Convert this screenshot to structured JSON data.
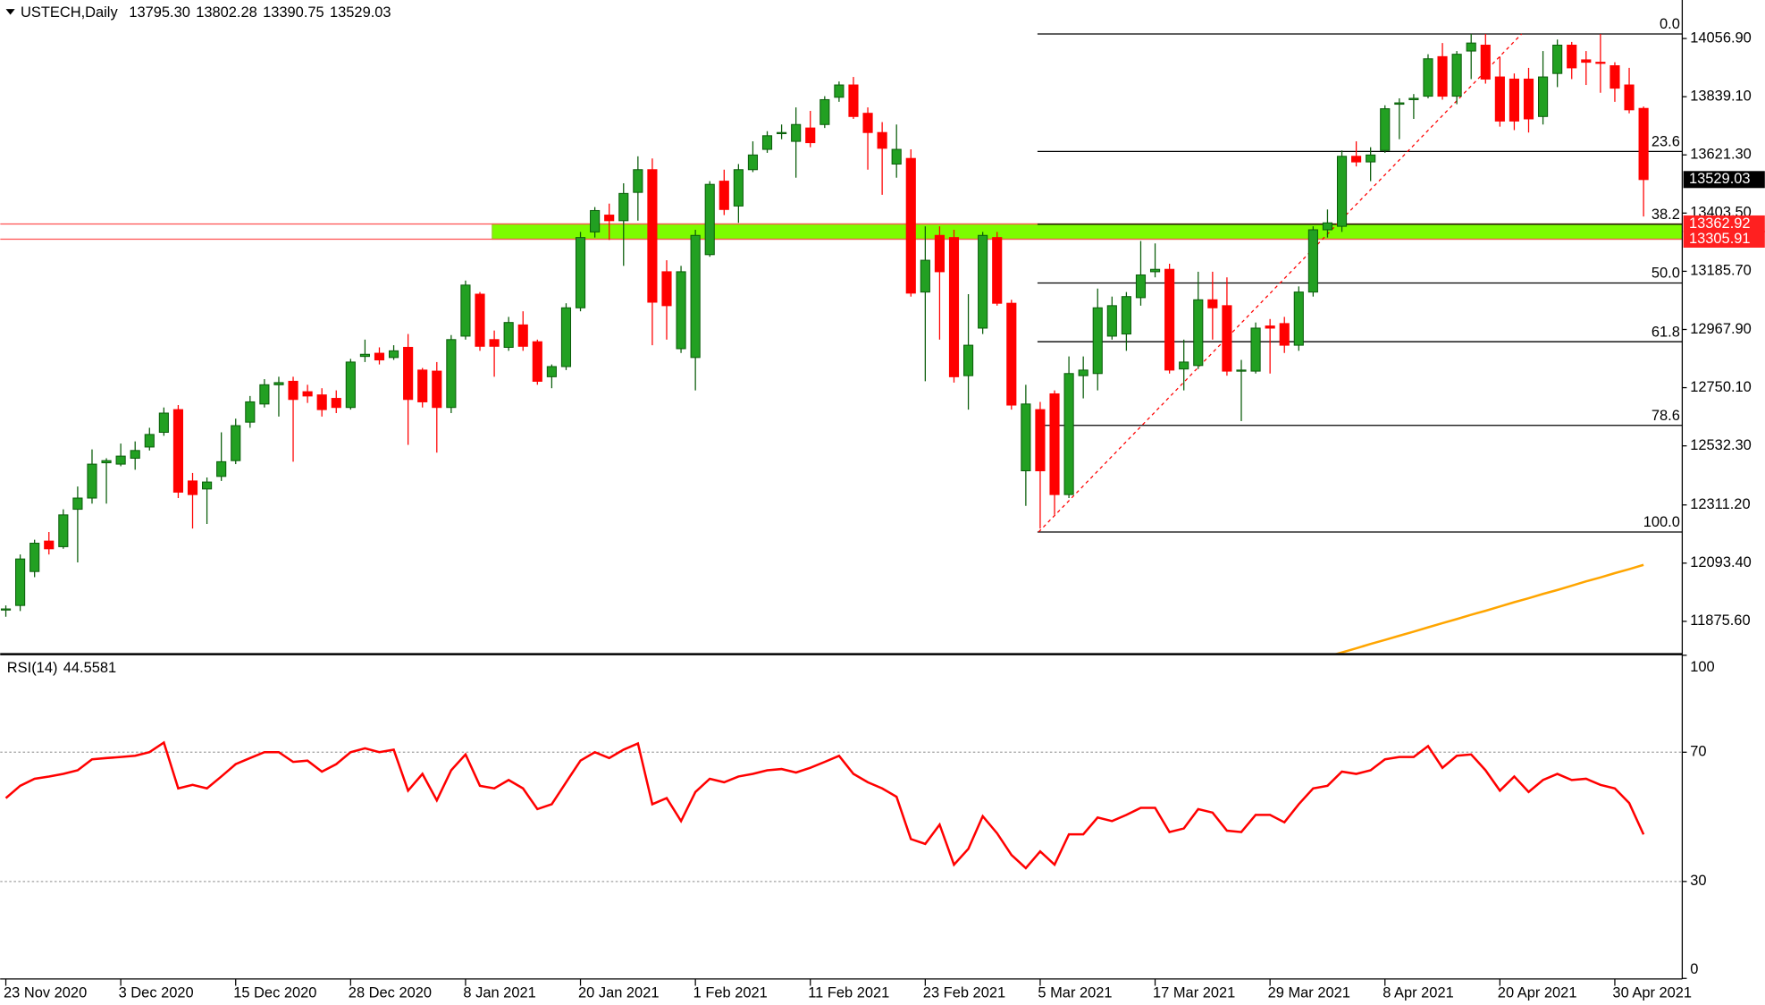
{
  "chart_data": [
    {
      "type": "candlestick",
      "title": "USTECH,Daily",
      "header_values": [
        {
          "value": 13795.3,
          "label": "13795.30"
        },
        13802.28,
        13390.75,
        13529.03
      ],
      "open": [
        11922,
        11935,
        12062,
        12176,
        12155,
        12295,
        12337,
        12469,
        12464,
        12486,
        12528,
        12583,
        12668,
        12401,
        12371,
        12418,
        12477,
        12621,
        12689,
        12761,
        12774,
        12735,
        12723,
        12710,
        12676,
        12867,
        12879,
        12863,
        12901,
        12816,
        12812,
        12676,
        12943,
        13100,
        12930,
        12901,
        12985,
        12922,
        12791,
        12829,
        13049,
        13333,
        13396,
        13375,
        13481,
        13566,
        13184,
        12896,
        12863,
        13248,
        13523,
        13430,
        13566,
        13642,
        13701,
        13672,
        13722,
        13735,
        13837,
        13883,
        13777,
        13705,
        13587,
        13608,
        13108,
        13320,
        13312,
        12795,
        12973,
        13312,
        13066,
        12439,
        12668,
        12727,
        12350,
        12795,
        12803,
        12943,
        12951,
        13087,
        13184,
        13193,
        12820,
        12833,
        13079,
        13057,
        12812,
        12812,
        12981,
        12990,
        12909,
        13108,
        13341,
        13354,
        13616,
        13595,
        13638,
        13811,
        13828,
        13841,
        13989,
        13841,
        14010,
        14032,
        13913,
        13905,
        13905,
        13765,
        13926,
        14032,
        13977,
        13968,
        13955,
        13883,
        13795.3
      ],
      "high": [
        11935,
        12126,
        12181,
        12210,
        12295,
        12380,
        12519,
        12486,
        12541,
        12549,
        12600,
        12676,
        12685,
        12431,
        12414,
        12583,
        12634,
        12719,
        12782,
        12791,
        12791,
        12761,
        12748,
        12740,
        12858,
        12930,
        12901,
        12909,
        12951,
        12824,
        12846,
        12947,
        13151,
        13108,
        12964,
        13015,
        13036,
        12930,
        12837,
        13066,
        13333,
        13426,
        13439,
        13515,
        13616,
        13608,
        13227,
        13206,
        13341,
        13523,
        13566,
        13587,
        13672,
        13710,
        13735,
        13799,
        13786,
        13841,
        13896,
        13913,
        13799,
        13744,
        13735,
        13642,
        13354,
        13354,
        13341,
        13100,
        13333,
        13333,
        13079,
        12761,
        12697,
        12740,
        12867,
        12867,
        13121,
        13091,
        13108,
        13299,
        13290,
        13214,
        12930,
        13184,
        13184,
        13163,
        12854,
        12994,
        13007,
        13015,
        13129,
        13354,
        13417,
        13638,
        13672,
        13650,
        13807,
        13833,
        13849,
        13998,
        14040,
        14010,
        14074,
        14074,
        13989,
        13926,
        13947,
        14010,
        14053,
        14044,
        14010,
        14074,
        13968,
        13947,
        13802.28
      ],
      "low": [
        11893,
        11914,
        12041,
        12126,
        12147,
        12096,
        12316,
        12316,
        12456,
        12443,
        12515,
        12570,
        12337,
        12223,
        12240,
        12401,
        12464,
        12600,
        12676,
        12642,
        12473,
        12693,
        12642,
        12655,
        12668,
        12846,
        12837,
        12854,
        12536,
        12676,
        12507,
        12655,
        12930,
        12888,
        12791,
        12888,
        12888,
        12761,
        12748,
        12816,
        13036,
        13312,
        13303,
        13206,
        13375,
        12909,
        12930,
        12880,
        12740,
        13240,
        13396,
        13367,
        13557,
        13629,
        13680,
        13536,
        13650,
        13722,
        13820,
        13756,
        13566,
        13472,
        13536,
        13091,
        12774,
        12930,
        12769,
        12668,
        12951,
        13057,
        12668,
        12308,
        12223,
        12274,
        12337,
        12710,
        12740,
        12930,
        12888,
        13057,
        13163,
        12803,
        12740,
        12820,
        12930,
        12795,
        12625,
        12803,
        12803,
        12880,
        12888,
        13091,
        13312,
        13333,
        13578,
        13523,
        13629,
        13680,
        13756,
        13833,
        13828,
        13811,
        13905,
        13888,
        13727,
        13714,
        13705,
        13735,
        13875,
        13905,
        13883,
        13854,
        13820,
        13777,
        13390.75
      ],
      "close": [
        11922,
        12109,
        12168,
        12147,
        12274,
        12337,
        12464,
        12477,
        12494,
        12515,
        12575,
        12655,
        12359,
        12350,
        12397,
        12473,
        12608,
        12697,
        12761,
        12769,
        12706,
        12719,
        12668,
        12676,
        12846,
        12875,
        12854,
        12888,
        12706,
        12697,
        12676,
        12930,
        13134,
        12905,
        12905,
        12994,
        12905,
        12774,
        12829,
        13049,
        13312,
        13413,
        13375,
        13477,
        13566,
        13070,
        13057,
        13184,
        13320,
        13511,
        13417,
        13566,
        13621,
        13693,
        13705,
        13735,
        13667,
        13828,
        13883,
        13765,
        13705,
        13646,
        13642,
        13104,
        13227,
        13184,
        12791,
        12909,
        13320,
        13066,
        12685,
        12689,
        12439,
        12350,
        12803,
        12816,
        13049,
        13057,
        13091,
        13172,
        13193,
        12816,
        12846,
        13079,
        13049,
        12812,
        12816,
        12973,
        12973,
        12909,
        13108,
        13341,
        13367,
        13616,
        13595,
        13621,
        13794,
        13816,
        13833,
        13981,
        13841,
        13998,
        14040,
        13905,
        13748,
        13748,
        13756,
        13913,
        14032,
        13947,
        13968,
        13964,
        13871,
        13790,
        13529.03
      ],
      "up_color": "#22a022",
      "down_color": "#ff0000",
      "moving_average": {
        "color": "#ffa500",
        "values": [
          null,
          null,
          null,
          null,
          null,
          null,
          null,
          null,
          null,
          null,
          null,
          null,
          null,
          null,
          null,
          null,
          null,
          null,
          null,
          null,
          null,
          null,
          null,
          null,
          null,
          null,
          null,
          null,
          null,
          null,
          null,
          null,
          null,
          null,
          null,
          null,
          null,
          null,
          null,
          null,
          null,
          null,
          null,
          null,
          null,
          null,
          null,
          null,
          null,
          null,
          null,
          null,
          null,
          null,
          null,
          null,
          null,
          null,
          null,
          null,
          null,
          null,
          null,
          null,
          null,
          null,
          null,
          null,
          null,
          null,
          null,
          null,
          null,
          null,
          null,
          null,
          null,
          null,
          null,
          null,
          null,
          null,
          null,
          null,
          null,
          null,
          null,
          null,
          null,
          null,
          null,
          null,
          11744,
          11759,
          11775,
          11791,
          11806,
          11822,
          11837,
          11853,
          11869,
          11884,
          11900,
          11915,
          11931,
          11947,
          11962,
          11978,
          11993,
          12009,
          12025,
          12040,
          12056,
          12071,
          12087
        ]
      },
      "current_price": 13529.03,
      "zone": [
        13305.91,
        13362.92
      ],
      "zone_color": "#7cfc00",
      "fib_high": 14074,
      "fib_low": 12210,
      "fib_levels": [
        {
          "value": 0,
          "label": "0.0"
        },
        23.6,
        38.2,
        {
          "value": 50,
          "label": "50.0"
        },
        61.8,
        78.6,
        {
          "value": 100,
          "label": "100.0"
        }
      ],
      "ylim": [
        11757,
        14201
      ],
      "yticks": [
        {
          "value": 14056.9,
          "label": "14056.90"
        },
        {
          "value": 13839.1,
          "label": "13839.10"
        },
        {
          "value": 13621.3,
          "label": "13621.30"
        },
        {
          "value": 13403.5,
          "label": "13403.50"
        },
        {
          "value": 13185.7,
          "label": "13185.70"
        },
        {
          "value": 12967.9,
          "label": "12967.90"
        },
        {
          "value": 12750.1,
          "label": "12750.10"
        },
        {
          "value": 12532.3,
          "label": "12532.30"
        },
        {
          "value": 12311.2,
          "label": "12311.20"
        },
        {
          "value": 12093.4,
          "label": "12093.40"
        },
        {
          "value": 11875.6,
          "label": "11875.60"
        }
      ]
    },
    {
      "type": "line",
      "title": "RSI(14)",
      "current": 44.5581,
      "color": "#ff0000",
      "categories": [
        "23 Nov 2020",
        null,
        null,
        null,
        null,
        null,
        null,
        null,
        "3 Dec 2020",
        null,
        null,
        null,
        null,
        null,
        null,
        null,
        "15 Dec 2020",
        null,
        null,
        null,
        null,
        null,
        null,
        null,
        "28 Dec 2020",
        null,
        null,
        null,
        null,
        null,
        null,
        null,
        "8 Jan 2021",
        null,
        null,
        null,
        null,
        null,
        null,
        null,
        "20 Jan 2021",
        null,
        null,
        null,
        null,
        null,
        null,
        null,
        "1 Feb 2021",
        null,
        null,
        null,
        null,
        null,
        null,
        null,
        "11 Feb 2021",
        null,
        null,
        null,
        null,
        null,
        null,
        null,
        "23 Feb 2021",
        null,
        null,
        null,
        null,
        null,
        null,
        null,
        "5 Mar 2021",
        null,
        null,
        null,
        null,
        null,
        null,
        null,
        "17 Mar 2021",
        null,
        null,
        null,
        null,
        null,
        null,
        null,
        "29 Mar 2021",
        null,
        null,
        null,
        null,
        null,
        null,
        null,
        "8 Apr 2021",
        null,
        null,
        null,
        null,
        null,
        null,
        null,
        "20 Apr 2021",
        null,
        null,
        null,
        null,
        null,
        null,
        null,
        "30 Apr 2021",
        null,
        null
      ],
      "values": [
        55.8,
        59.6,
        61.8,
        62.5,
        63.3,
        64.4,
        67.8,
        68.2,
        68.5,
        68.9,
        70.0,
        73.0,
        58.8,
        59.9,
        58.8,
        62.5,
        66.3,
        68.2,
        70.0,
        70.0,
        67.0,
        67.4,
        64.0,
        66.3,
        70.0,
        71.2,
        70.0,
        70.8,
        58.1,
        63.3,
        55.1,
        64.4,
        69.3,
        59.6,
        58.8,
        61.4,
        58.8,
        52.4,
        53.9,
        60.7,
        67.4,
        70.0,
        68.2,
        70.8,
        72.7,
        53.9,
        55.8,
        48.7,
        57.7,
        61.8,
        60.7,
        62.5,
        63.3,
        64.4,
        64.8,
        63.7,
        65.2,
        67.0,
        68.9,
        63.3,
        60.7,
        58.8,
        56.2,
        43.1,
        41.6,
        47.6,
        35.2,
        40.1,
        50.2,
        44.9,
        38.2,
        34.1,
        39.3,
        35.2,
        44.6,
        44.6,
        49.8,
        48.7,
        50.6,
        52.8,
        52.8,
        45.3,
        46.4,
        52.4,
        51.3,
        45.7,
        45.3,
        50.6,
        50.6,
        48.3,
        53.9,
        58.8,
        59.6,
        64.0,
        63.3,
        64.4,
        67.8,
        68.5,
        68.5,
        71.9,
        65.2,
        68.9,
        69.3,
        64.4,
        58.1,
        62.5,
        57.7,
        61.4,
        63.3,
        61.4,
        61.8,
        59.9,
        58.8,
        54.3,
        44.5581
      ],
      "ylim": [
        0,
        100
      ],
      "yticks": [
        0,
        30,
        70,
        100
      ],
      "levels": [
        30,
        70
      ]
    }
  ]
}
